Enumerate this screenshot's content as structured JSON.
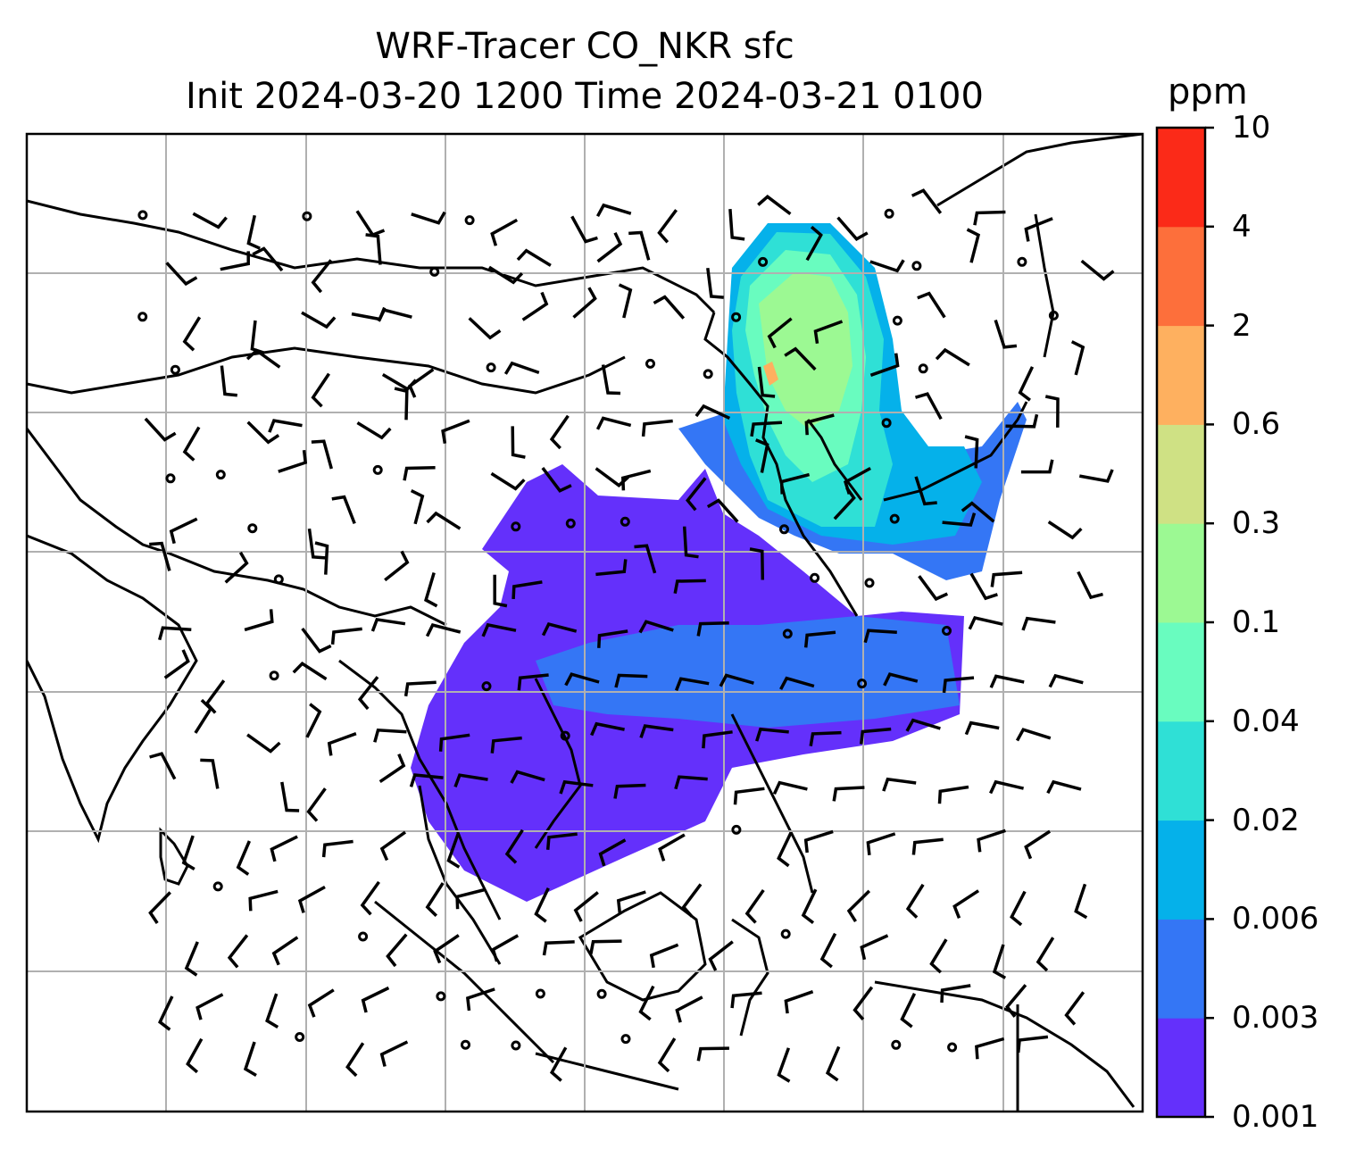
{
  "title": {
    "line1": "WRF-Tracer CO_NKR sfc",
    "line2": "Init 2024-03-20 1200 Time 2024-03-21 0100"
  },
  "colorbar": {
    "unit": "ppm",
    "levels": [
      "0.001",
      "0.003",
      "0.006",
      "0.02",
      "0.04",
      "0.1",
      "0.3",
      "0.6",
      "2",
      "4",
      "10"
    ],
    "colors": [
      "#6430fb",
      "#3476f5",
      "#05b1ea",
      "#2fe0d6",
      "#69fcbf",
      "#9cf993",
      "#cfe184",
      "#feb05f",
      "#fd6f3b",
      "#fb2a18"
    ]
  },
  "map": {
    "region": "East & South-East Asia",
    "gridlines": true,
    "coastline_color": "#000000",
    "grid_color": "#b0b0b0"
  }
}
